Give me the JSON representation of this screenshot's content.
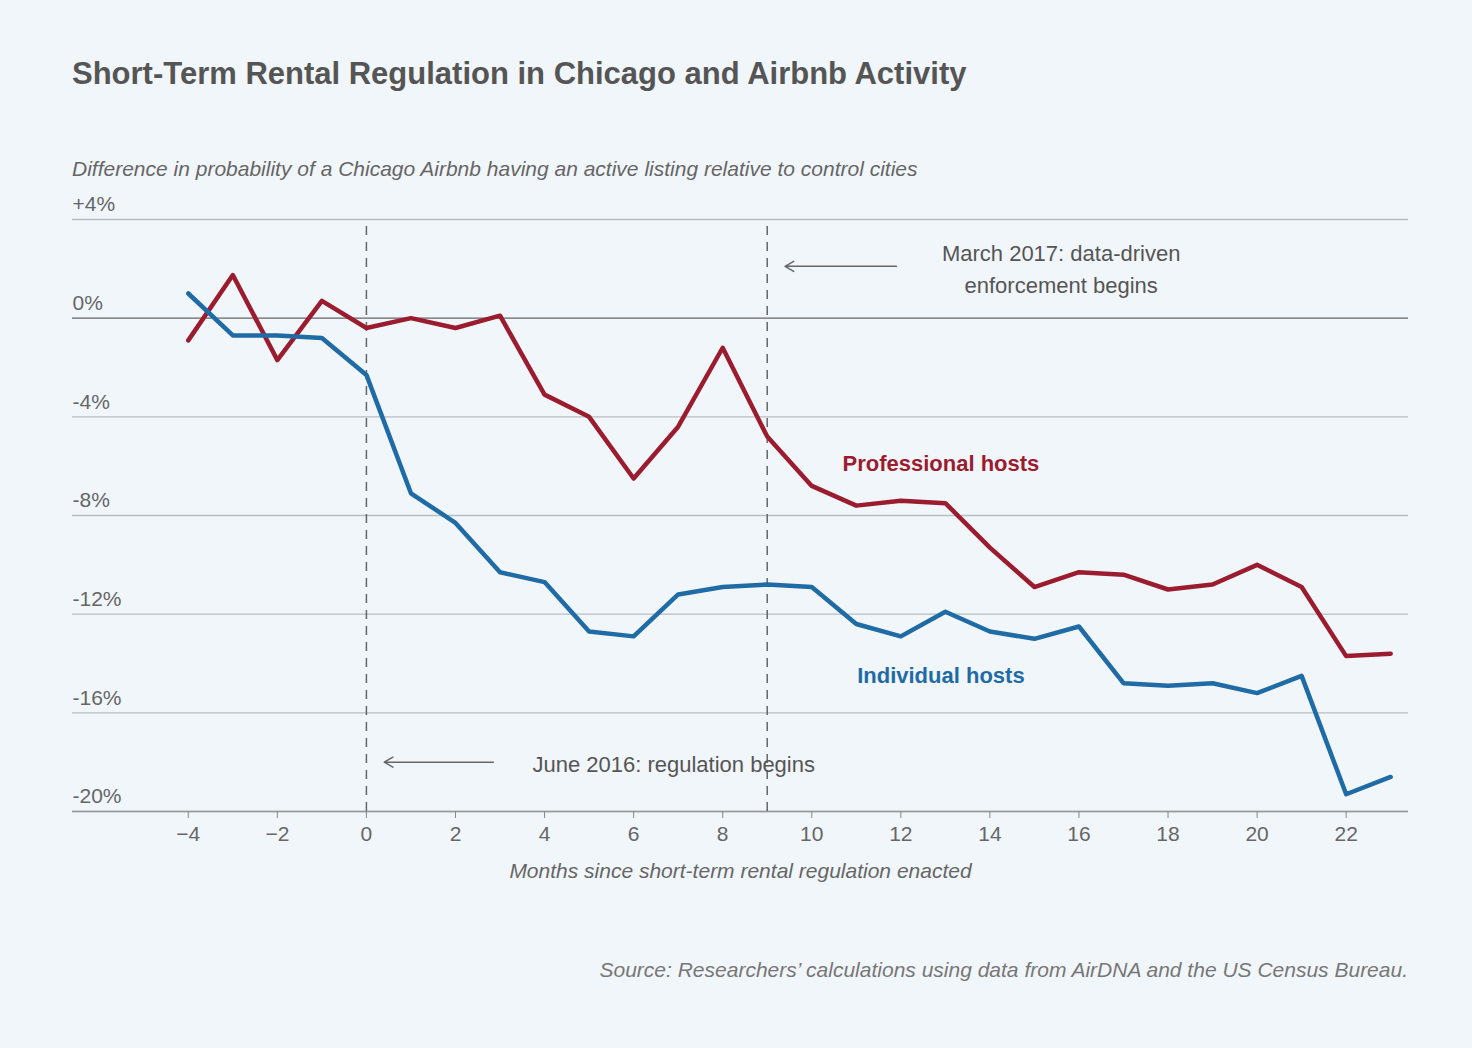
{
  "chart_data": {
    "type": "line",
    "title": "Short-Term Rental Regulation in Chicago and Airbnb Activity",
    "subtitle": "Difference in probability of a Chicago Airbnb having an active listing relative to control cities",
    "x_label": "Months since short-term rental regulation enacted",
    "source": "Source: Researchers’ calculations using data from AirDNA and the US Census Bureau.",
    "x": [
      -4,
      -3,
      -2,
      -1,
      0,
      1,
      2,
      3,
      4,
      5,
      6,
      7,
      8,
      9,
      10,
      11,
      12,
      13,
      14,
      15,
      16,
      17,
      18,
      19,
      20,
      21,
      22,
      23
    ],
    "series": [
      {
        "name": "Professional hosts",
        "color": "#9b1c2e",
        "values": [
          -0.9,
          1.75,
          -1.7,
          0.7,
          -0.4,
          0.0,
          -0.4,
          0.1,
          -3.1,
          -4.0,
          -6.5,
          -4.4,
          -1.2,
          -4.8,
          -6.8,
          -7.6,
          -7.4,
          -7.5,
          -9.3,
          -10.9,
          -10.3,
          -10.4,
          -11.0,
          -10.8,
          -10.0,
          -10.9,
          -13.7,
          -13.6
        ]
      },
      {
        "name": "Individual hosts",
        "color": "#1f6ba5",
        "values": [
          1.0,
          -0.7,
          -0.7,
          -0.8,
          -2.3,
          -7.1,
          -8.3,
          -10.3,
          -10.7,
          -12.7,
          -12.9,
          -11.2,
          -10.9,
          -10.8,
          -10.9,
          -12.4,
          -12.9,
          -11.9,
          -12.7,
          -13.0,
          -12.5,
          -14.8,
          -14.9,
          -14.8,
          -15.2,
          -14.5,
          -19.3,
          -18.6
        ]
      }
    ],
    "annotations": [
      {
        "text": "June 2016: regulation begins",
        "x": 0
      },
      {
        "text": "March 2017: data-driven\nenforcement begins",
        "x": 9
      }
    ],
    "xlim": [
      -6.6,
      23.4
    ],
    "xticks": [
      {
        "value": -4,
        "label": "−4"
      },
      {
        "value": -2,
        "label": "−2"
      },
      0,
      2,
      4,
      6,
      8,
      10,
      12,
      14,
      16,
      18,
      20,
      22
    ],
    "ylim": [
      -20,
      4
    ],
    "yticks": [
      {
        "value": 4,
        "label": "+4%"
      },
      {
        "value": 0,
        "label": "0%"
      },
      {
        "value": -4,
        "label": "-4%"
      },
      {
        "value": -8,
        "label": "-8%"
      },
      {
        "value": -12,
        "label": "-12%"
      },
      {
        "value": -16,
        "label": "-16%"
      },
      {
        "value": -20,
        "label": "-20%"
      }
    ],
    "grid": true
  }
}
